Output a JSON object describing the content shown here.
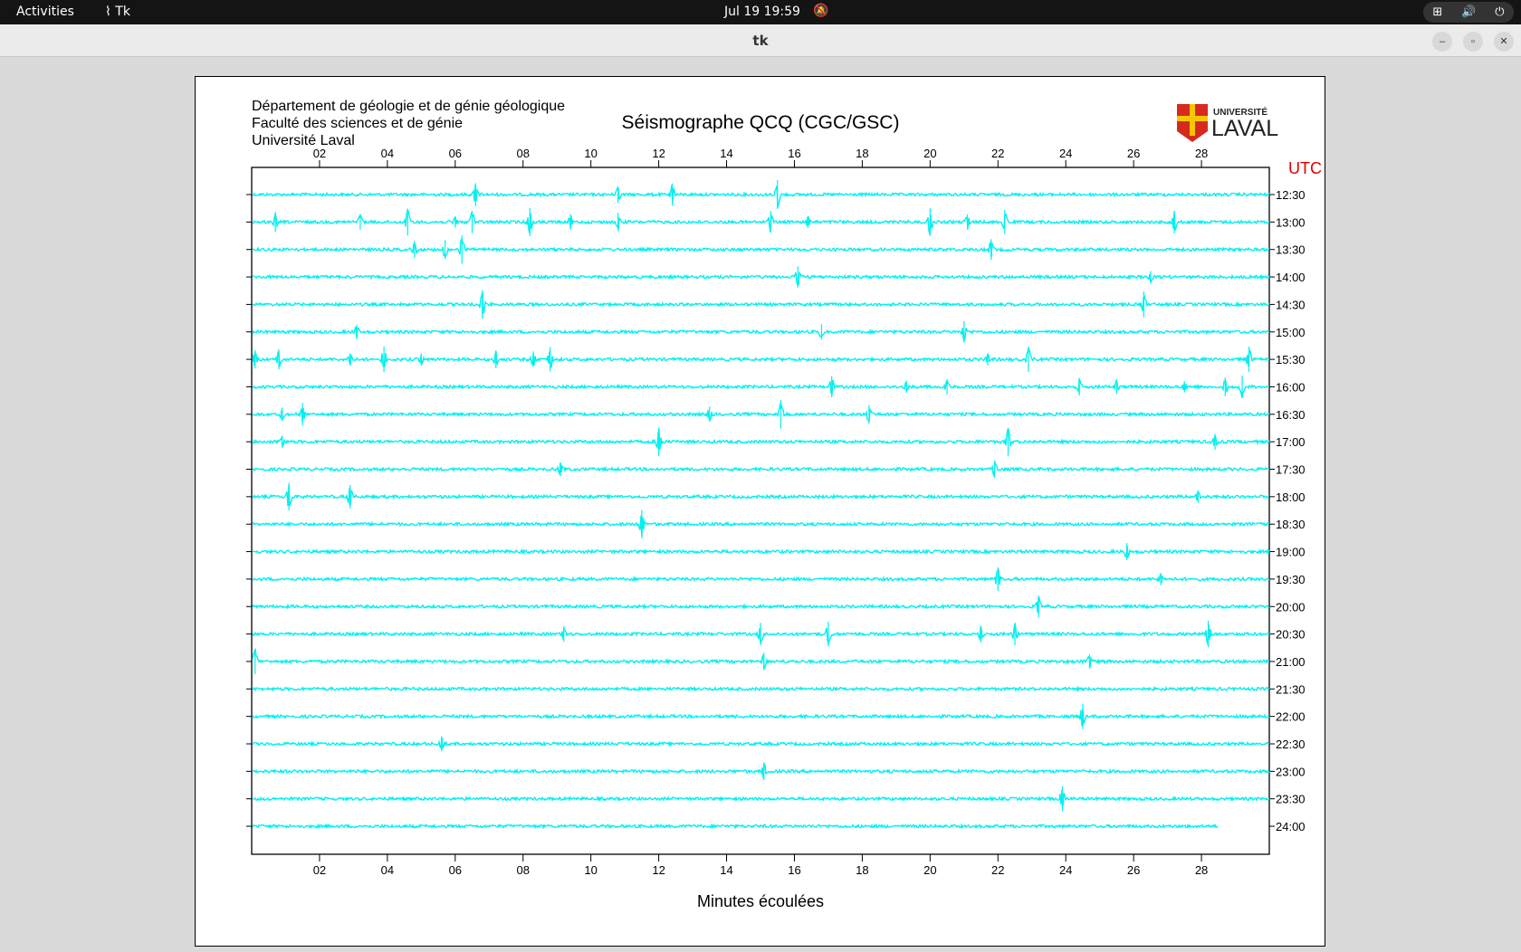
{
  "topbar": {
    "activities": "Activities",
    "app": "Tk",
    "clock": "Jul 19  19:59",
    "tray_icons": [
      "network-icon",
      "volume-icon",
      "power-icon"
    ]
  },
  "window": {
    "title": "tk",
    "buttons": [
      "minimize",
      "restore",
      "close"
    ]
  },
  "header": {
    "line1": "Département de géologie et de génie géologique",
    "line2": "Faculté des sciences et de génie",
    "line3": "Université Laval",
    "title": "Séismographe QCQ (CGC/GSC)",
    "logo_text": "UNIVERSITÉ LAVAL",
    "utc": "UTC"
  },
  "chart_data": {
    "type": "line",
    "title": "Séismographe QCQ (CGC/GSC)",
    "xlabel": "Minutes écoulées",
    "xlim": [
      0,
      30
    ],
    "xticks": [
      "02",
      "04",
      "06",
      "08",
      "10",
      "12",
      "14",
      "16",
      "18",
      "20",
      "22",
      "24",
      "26",
      "28"
    ],
    "trace_color": "#00f0f0",
    "utc_color": "#e00000",
    "rows": [
      {
        "label": "12:30",
        "spikes": [
          6.6,
          10.8,
          12.4,
          15.5
        ]
      },
      {
        "label": "13:00",
        "spikes": [
          0.7,
          3.2,
          4.6,
          6.0,
          6.5,
          8.2,
          9.4,
          10.8,
          15.3,
          16.4,
          20.0,
          21.1,
          22.2,
          27.2
        ]
      },
      {
        "label": "13:30",
        "spikes": [
          4.8,
          5.7,
          6.2,
          21.8
        ]
      },
      {
        "label": "14:00",
        "spikes": [
          16.1,
          26.5
        ]
      },
      {
        "label": "14:30",
        "spikes": [
          6.8,
          26.3
        ]
      },
      {
        "label": "15:00",
        "spikes": [
          3.1,
          16.8,
          21.0
        ]
      },
      {
        "label": "15:30",
        "spikes": [
          0.1,
          0.8,
          2.9,
          3.9,
          5.0,
          7.2,
          8.3,
          8.8,
          21.7,
          22.9,
          29.4
        ]
      },
      {
        "label": "16:00",
        "spikes": [
          17.1,
          19.3,
          20.5,
          24.4,
          25.5,
          27.5,
          28.7,
          29.2
        ]
      },
      {
        "label": "16:30",
        "spikes": [
          0.9,
          1.5,
          13.5,
          15.6,
          18.2
        ]
      },
      {
        "label": "17:00",
        "spikes": [
          0.9,
          12.0,
          22.3,
          28.4
        ]
      },
      {
        "label": "17:30",
        "spikes": [
          9.1,
          21.9
        ]
      },
      {
        "label": "18:00",
        "spikes": [
          1.1,
          2.9,
          27.9
        ]
      },
      {
        "label": "18:30",
        "spikes": [
          11.5
        ]
      },
      {
        "label": "19:00",
        "spikes": [
          25.8
        ]
      },
      {
        "label": "19:30",
        "spikes": [
          22.0,
          26.8
        ]
      },
      {
        "label": "20:00",
        "spikes": [
          23.2
        ]
      },
      {
        "label": "20:30",
        "spikes": [
          9.2,
          15.0,
          17.0,
          21.5,
          22.5,
          28.2
        ]
      },
      {
        "label": "21:00",
        "spikes": [
          0.1,
          15.1,
          24.7
        ]
      },
      {
        "label": "21:30",
        "spikes": []
      },
      {
        "label": "22:00",
        "spikes": [
          24.5
        ]
      },
      {
        "label": "22:30",
        "spikes": [
          5.6
        ]
      },
      {
        "label": "23:00",
        "spikes": [
          15.1
        ]
      },
      {
        "label": "23:30",
        "spikes": [
          23.9
        ]
      },
      {
        "label": "24:00",
        "spikes": [],
        "end": 28.5
      }
    ]
  }
}
